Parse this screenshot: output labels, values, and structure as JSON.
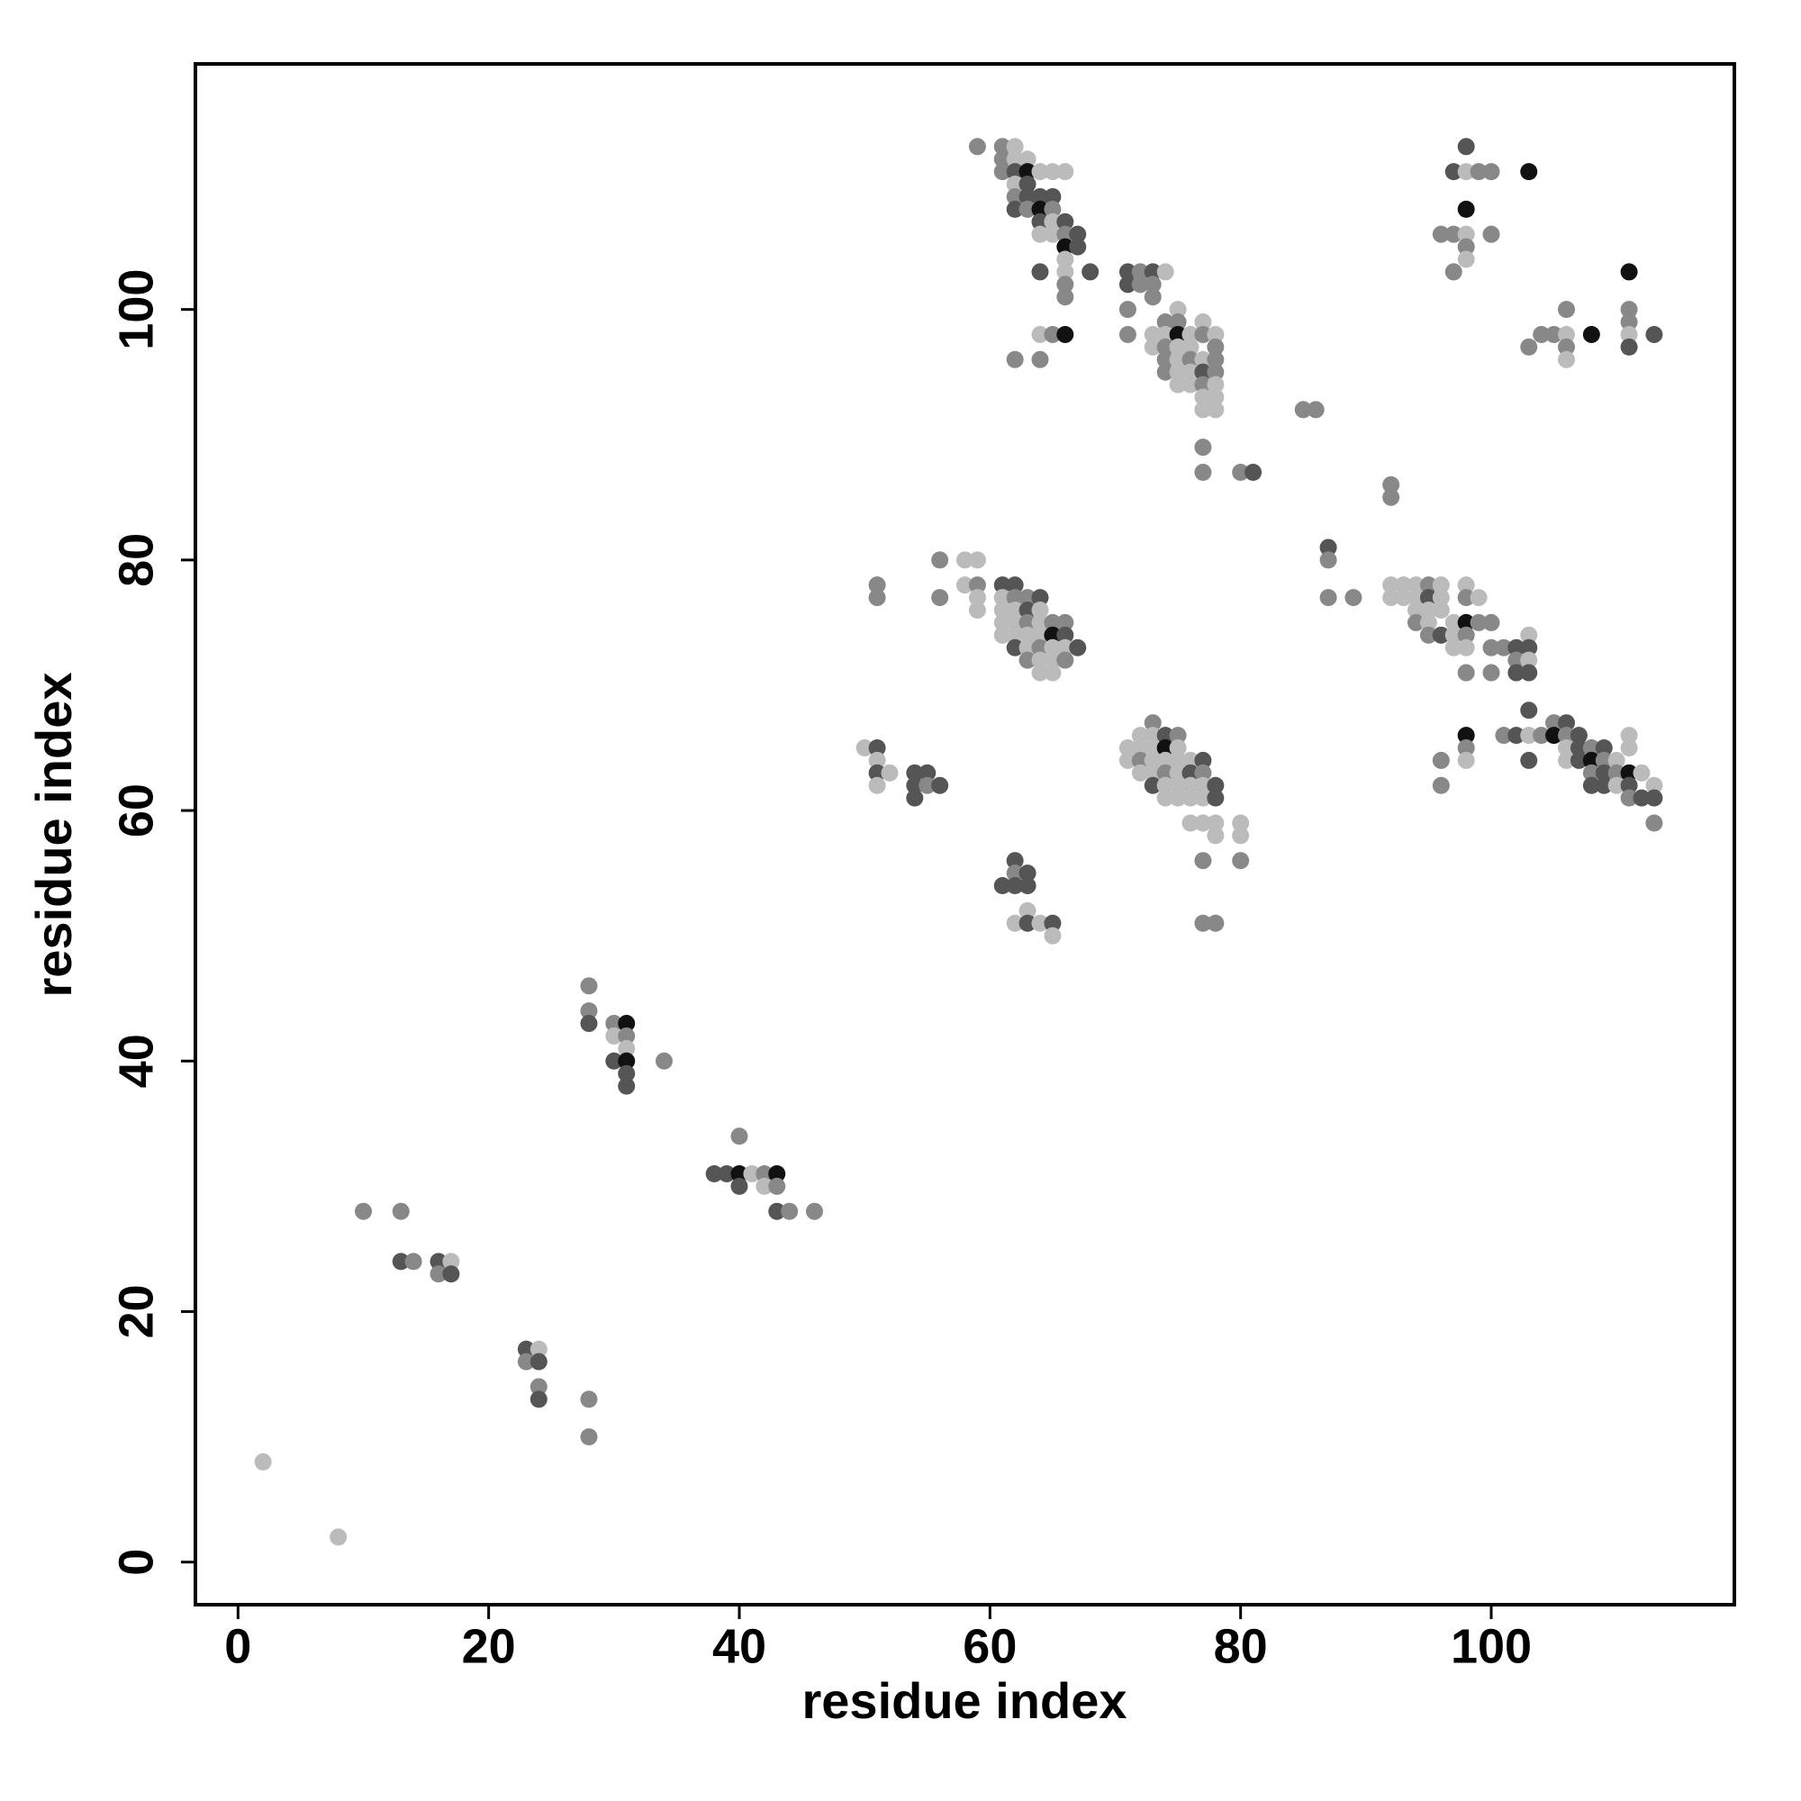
{
  "chart_data": {
    "type": "scatter",
    "xlabel": "residue index",
    "ylabel": "residue index",
    "xlim": [
      -3.4,
      119.4
    ],
    "ylim": [
      -3.4,
      119.6
    ],
    "xticks": [
      0,
      20,
      40,
      60,
      80,
      100
    ],
    "yticks": [
      0,
      20,
      40,
      60,
      80,
      100
    ],
    "grid": false,
    "x": [
      2,
      8,
      10,
      13,
      13,
      14,
      16,
      16,
      17,
      17,
      23,
      23,
      24,
      24,
      24,
      24,
      28,
      28,
      28,
      28,
      28,
      30,
      31,
      30,
      31,
      31,
      30,
      31,
      31,
      31,
      34,
      38,
      39,
      40,
      40,
      40,
      41,
      42,
      42,
      43,
      43,
      43,
      44,
      46,
      50,
      51,
      51,
      51,
      51,
      52,
      54,
      54,
      54,
      55,
      55,
      56,
      51,
      51,
      56,
      56,
      58,
      59,
      58,
      59,
      59,
      59,
      61,
      62,
      61,
      62,
      63,
      64,
      61,
      62,
      63,
      64,
      61,
      62,
      63,
      64,
      65,
      66,
      61,
      62,
      63,
      64,
      65,
      66,
      62,
      63,
      64,
      65,
      66,
      67,
      63,
      64,
      65,
      66,
      64,
      65,
      62,
      62,
      63,
      61,
      62,
      63,
      63,
      62,
      63,
      64,
      65,
      65,
      73,
      72,
      73,
      74,
      75,
      71,
      72,
      73,
      74,
      75,
      71,
      72,
      73,
      74,
      75,
      76,
      77,
      72,
      73,
      74,
      75,
      76,
      77,
      73,
      74,
      75,
      76,
      77,
      78,
      74,
      75,
      76,
      77,
      78,
      76,
      77,
      78,
      80,
      78,
      80,
      77,
      80,
      77,
      78,
      59,
      61,
      62,
      61,
      62,
      63,
      61,
      62,
      63,
      64,
      65,
      66,
      62,
      63,
      62,
      63,
      64,
      65,
      62,
      63,
      64,
      65,
      64,
      65,
      66,
      64,
      65,
      66,
      67,
      66,
      67,
      66,
      64,
      66,
      68,
      66,
      66,
      64,
      65,
      66,
      62,
      64,
      71,
      72,
      73,
      74,
      71,
      72,
      73,
      73,
      71,
      75,
      74,
      75,
      77,
      71,
      73,
      74,
      75,
      76,
      77,
      78,
      73,
      74,
      75,
      76,
      78,
      74,
      75,
      76,
      77,
      78,
      74,
      75,
      76,
      77,
      78,
      75,
      76,
      77,
      78,
      77,
      78,
      77,
      78,
      77,
      77,
      80,
      81,
      85,
      86,
      92,
      92,
      87,
      87,
      87,
      89,
      92,
      93,
      94,
      95,
      96,
      98,
      92,
      93,
      94,
      95,
      96,
      98,
      99,
      94,
      95,
      96,
      94,
      95,
      97,
      98,
      99,
      100,
      95,
      96,
      97,
      98,
      103,
      97,
      98,
      100,
      101,
      102,
      103,
      102,
      103,
      98,
      100,
      102,
      103,
      103,
      101,
      102,
      103,
      104,
      105,
      106,
      105,
      106,
      107,
      98,
      98,
      98,
      96,
      96,
      103,
      106,
      107,
      108,
      109,
      106,
      107,
      108,
      109,
      110,
      108,
      109,
      110,
      111,
      112,
      108,
      109,
      110,
      111,
      113,
      111,
      112,
      113,
      111,
      111,
      113,
      98,
      97,
      98,
      99,
      100,
      103,
      98,
      96,
      97,
      98,
      100,
      98,
      98,
      97,
      111,
      106,
      111,
      111,
      104,
      105,
      106,
      108,
      111,
      113,
      103,
      106,
      111,
      106
    ],
    "y": [
      8,
      2,
      28,
      28,
      24,
      24,
      24,
      23,
      24,
      23,
      17,
      16,
      17,
      16,
      14,
      13,
      13,
      10,
      46,
      44,
      43,
      43,
      43,
      42,
      42,
      41,
      40,
      40,
      39,
      38,
      40,
      31,
      31,
      31,
      34,
      30,
      31,
      31,
      30,
      31,
      30,
      28,
      28,
      28,
      65,
      65,
      64,
      63,
      62,
      63,
      63,
      62,
      61,
      63,
      62,
      62,
      78,
      77,
      80,
      77,
      80,
      80,
      78,
      78,
      77,
      76,
      78,
      78,
      77,
      77,
      77,
      77,
      76,
      76,
      76,
      76,
      75,
      75,
      75,
      75,
      75,
      75,
      74,
      74,
      74,
      74,
      74,
      74,
      73,
      73,
      73,
      73,
      73,
      73,
      72,
      72,
      72,
      72,
      71,
      71,
      56,
      55,
      55,
      54,
      54,
      54,
      52,
      51,
      51,
      51,
      51,
      50,
      67,
      66,
      66,
      66,
      66,
      65,
      65,
      65,
      65,
      65,
      64,
      64,
      64,
      64,
      64,
      64,
      64,
      63,
      63,
      63,
      63,
      63,
      63,
      62,
      62,
      62,
      62,
      62,
      62,
      61,
      61,
      61,
      61,
      61,
      59,
      59,
      59,
      59,
      58,
      58,
      56,
      56,
      51,
      51,
      113,
      113,
      113,
      112,
      112,
      112,
      111,
      111,
      111,
      111,
      111,
      111,
      110,
      110,
      109,
      109,
      109,
      109,
      108,
      108,
      108,
      108,
      107,
      107,
      107,
      106,
      106,
      106,
      106,
      105,
      105,
      104,
      103,
      103,
      103,
      102,
      101,
      98,
      98,
      98,
      96,
      96,
      103,
      103,
      103,
      103,
      102,
      102,
      102,
      101,
      100,
      100,
      99,
      99,
      99,
      98,
      98,
      98,
      98,
      98,
      98,
      98,
      97,
      97,
      97,
      97,
      97,
      96,
      96,
      96,
      96,
      96,
      95,
      95,
      95,
      95,
      95,
      94,
      94,
      94,
      94,
      93,
      93,
      92,
      92,
      89,
      87,
      87,
      87,
      92,
      92,
      86,
      85,
      81,
      80,
      77,
      77,
      78,
      78,
      78,
      78,
      78,
      78,
      77,
      77,
      77,
      77,
      77,
      77,
      77,
      76,
      76,
      76,
      75,
      75,
      75,
      75,
      75,
      75,
      74,
      74,
      74,
      74,
      74,
      73,
      73,
      73,
      73,
      73,
      73,
      72,
      72,
      71,
      71,
      71,
      71,
      68,
      66,
      66,
      66,
      66,
      67,
      67,
      66,
      66,
      66,
      66,
      65,
      64,
      64,
      62,
      64,
      65,
      65,
      65,
      65,
      64,
      64,
      64,
      64,
      64,
      63,
      63,
      63,
      63,
      63,
      62,
      62,
      62,
      62,
      62,
      61,
      61,
      61,
      66,
      65,
      59,
      113,
      111,
      111,
      111,
      111,
      111,
      108,
      106,
      106,
      106,
      106,
      105,
      104,
      103,
      103,
      100,
      100,
      99,
      98,
      98,
      98,
      98,
      98,
      98,
      97,
      97,
      97,
      96
    ],
    "colors": [
      "#bbb",
      "#bbb",
      "#888",
      "#888",
      "#555",
      "#888",
      "#555",
      "#888",
      "#bbb",
      "#555",
      "#555",
      "#888",
      "#bbb",
      "#555",
      "#888",
      "#555",
      "#888",
      "#888",
      "#888",
      "#888",
      "#555",
      "#888",
      "#111",
      "#bbb",
      "#888",
      "#bbb",
      "#555",
      "#111",
      "#555",
      "#555",
      "#888",
      "#555",
      "#555",
      "#111",
      "#888",
      "#555",
      "#bbb",
      "#888",
      "#bbb",
      "#111",
      "#888",
      "#555",
      "#888",
      "#888",
      "#bbb",
      "#555",
      "#bbb",
      "#555",
      "#bbb",
      "#bbb",
      "#555",
      "#555",
      "#555",
      "#555",
      "#888",
      "#555",
      "#888",
      "#888",
      "#888",
      "#888",
      "#bbb",
      "#bbb",
      "#bbb",
      "#888",
      "#bbb",
      "#bbb",
      "#555",
      "#555",
      "#bbb",
      "#888",
      "#888",
      "#555",
      "#bbb",
      "#bbb",
      "#555",
      "#bbb",
      "#bbb",
      "#bbb",
      "#888",
      "#bbb",
      "#888",
      "#888",
      "#bbb",
      "#bbb",
      "#bbb",
      "#bbb",
      "#111",
      "#555",
      "#555",
      "#bbb",
      "#888",
      "#bbb",
      "#bbb",
      "#555",
      "#888",
      "#bbb",
      "#bbb",
      "#888",
      "#bbb",
      "#bbb",
      "#555",
      "#888",
      "#555",
      "#555",
      "#555",
      "#555",
      "#bbb",
      "#bbb",
      "#555",
      "#bbb",
      "#555",
      "#bbb",
      "#888",
      "#bbb",
      "#bbb",
      "#555",
      "#888",
      "#bbb",
      "#bbb",
      "#bbb",
      "#111",
      "#bbb",
      "#bbb",
      "#888",
      "#bbb",
      "#bbb",
      "#bbb",
      "#bbb",
      "#555",
      "#bbb",
      "#bbb",
      "#888",
      "#bbb",
      "#555",
      "#888",
      "#555",
      "#bbb",
      "#bbb",
      "#bbb",
      "#bbb",
      "#555",
      "#bbb",
      "#bbb",
      "#bbb",
      "#bbb",
      "#555",
      "#bbb",
      "#bbb",
      "#bbb",
      "#bbb",
      "#bbb",
      "#bbb",
      "#888",
      "#888",
      "#888",
      "#888",
      "#888",
      "#888",
      "#bbb",
      "#888",
      "#bbb",
      "#bbb",
      "#888",
      "#555",
      "#111",
      "#bbb",
      "#bbb",
      "#bbb",
      "#bbb",
      "#555",
      "#888",
      "#555",
      "#555",
      "#555",
      "#555",
      "#888",
      "#111",
      "#888",
      "#555",
      "#bbb",
      "#555",
      "#bbb",
      "#bbb",
      "#888",
      "#555",
      "#111",
      "#555",
      "#bbb",
      "#555",
      "#bbb",
      "#555",
      "#888",
      "#888",
      "#bbb",
      "#888",
      "#111",
      "#888",
      "#888",
      "#555",
      "#888",
      "#555",
      "#bbb",
      "#555",
      "#888",
      "#888",
      "#888",
      "#888",
      "#bbb",
      "#888",
      "#888",
      "#bbb",
      "#888",
      "#bbb",
      "#bbb",
      "#111",
      "#bbb",
      "#888",
      "#bbb",
      "#bbb",
      "#888",
      "#bbb",
      "#bbb",
      "#888",
      "#888",
      "#bbb",
      "#888",
      "#bbb",
      "#888",
      "#888",
      "#bbb",
      "#bbb",
      "#555",
      "#888",
      "#bbb",
      "#bbb",
      "#888",
      "#bbb",
      "#bbb",
      "#bbb",
      "#bbb",
      "#bbb",
      "#888",
      "#888",
      "#888",
      "#555",
      "#888",
      "#888",
      "#888",
      "#888",
      "#555",
      "#888",
      "#888",
      "#888",
      "#bbb",
      "#bbb",
      "#bbb",
      "#888",
      "#bbb",
      "#bbb",
      "#bbb",
      "#bbb",
      "#bbb",
      "#555",
      "#bbb",
      "#888",
      "#bbb",
      "#bbb",
      "#bbb",
      "#bbb",
      "#888",
      "#bbb",
      "#bbb",
      "#111",
      "#888",
      "#888",
      "#888",
      "#555",
      "#bbb",
      "#888",
      "#bbb",
      "#bbb",
      "#bbb",
      "#888",
      "#888",
      "#555",
      "#555",
      "#888",
      "#bbb",
      "#888",
      "#888",
      "#555",
      "#555",
      "#555",
      "#888",
      "#555",
      "#bbb",
      "#888",
      "#888",
      "#555",
      "#111",
      "#888",
      "#555",
      "#111",
      "#888",
      "#bbb",
      "#888",
      "#888",
      "#555",
      "#bbb",
      "#555",
      "#888",
      "#555",
      "#bbb",
      "#555",
      "#111",
      "#888",
      "#bbb",
      "#888",
      "#555",
      "#888",
      "#111",
      "#bbb",
      "#555",
      "#555",
      "#bbb",
      "#555",
      "#bbb",
      "#888",
      "#555",
      "#555",
      "#bbb",
      "#bbb",
      "#888",
      "#555",
      "#555",
      "#bbb",
      "#888",
      "#888",
      "#111",
      "#111",
      "#888",
      "#888",
      "#bbb",
      "#888",
      "#888",
      "#bbb",
      "#888",
      "#111",
      "#888",
      "#888",
      "#888",
      "#888",
      "#888",
      "#bbb",
      "#111",
      "#bbb",
      "#555",
      "#888",
      "#888",
      "#555",
      "#bbb"
    ]
  }
}
